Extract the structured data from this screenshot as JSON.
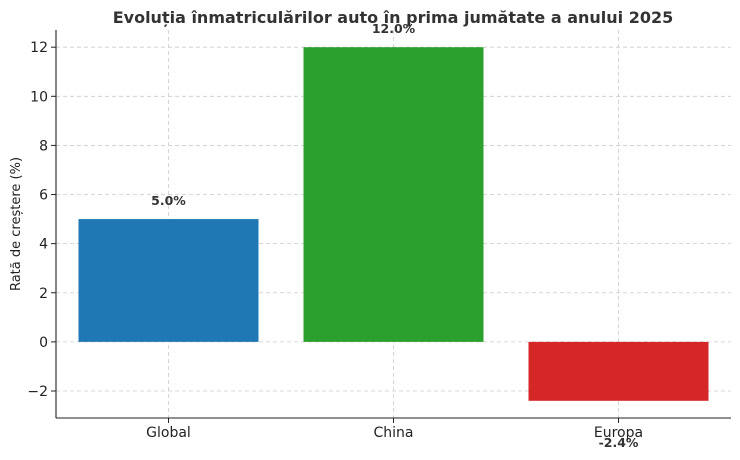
{
  "chart_data": {
    "type": "bar",
    "title": "Evoluția înmatriculărilor auto în prima jumătate a anului 2025",
    "xlabel": "",
    "ylabel": "Rată de creștere (%)",
    "categories": [
      "Global",
      "China",
      "Europa"
    ],
    "values": [
      5.0,
      12.0,
      -2.4
    ],
    "value_labels": [
      "5.0%",
      "12.0%",
      "-2.4%"
    ],
    "colors": [
      "#1f77b4",
      "#2ca02c",
      "#d62728"
    ],
    "ylim": [
      -3.1,
      12.7
    ],
    "yticks": [
      -2,
      0,
      2,
      4,
      6,
      8,
      10,
      12
    ],
    "ytick_labels": [
      "−2",
      "0",
      "2",
      "4",
      "6",
      "8",
      "10",
      "12"
    ],
    "grid": true
  }
}
